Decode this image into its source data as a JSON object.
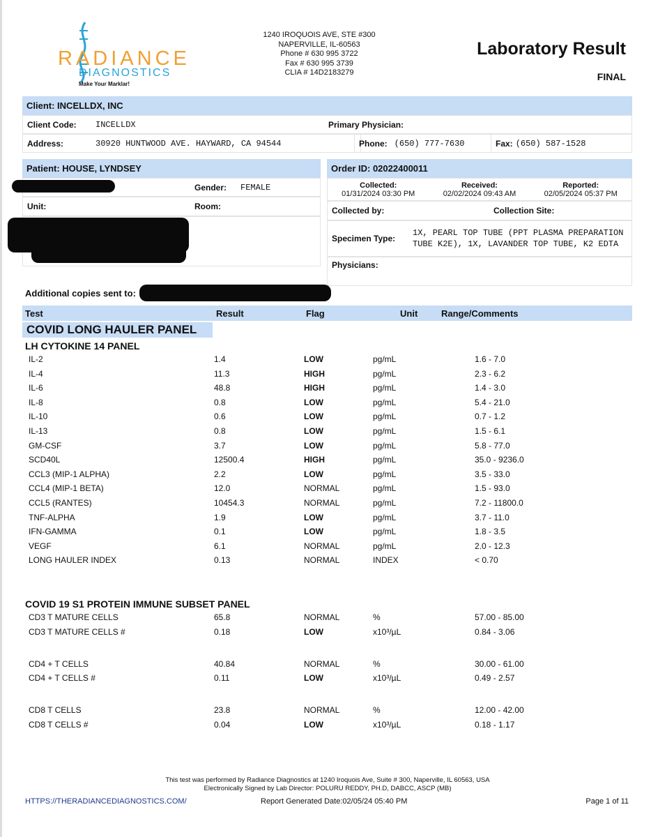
{
  "header": {
    "logo_name": "RADIANCE",
    "logo_sub": "DIAGNOSTICS",
    "logo_tag": "Make Your Marklar!",
    "address": [
      "1240 IROQUOIS AVE, STE #300",
      "NAPERVILLE, IL-60563",
      "Phone # 630 995 3722",
      "Fax # 630 995 3739",
      "CLIA # 14D2183279"
    ],
    "title": "Laboratory Result",
    "status": "FINAL"
  },
  "client": {
    "label": "Client:  INCELLDX, INC",
    "code_label": "Client Code:",
    "code": "INCELLDX",
    "physician_label": "Primary Physician:",
    "address_label": "Address:",
    "address": "30920 HUNTWOOD AVE. HAYWARD, CA 94544",
    "phone_label": "Phone:",
    "phone": "(650) 777-7630",
    "fax_label": "Fax:",
    "fax": "(650) 587-1528"
  },
  "patient": {
    "label": "Patient:  HOUSE, LYNDSEY",
    "gender_label": "Gender:",
    "gender": "FEMALE",
    "unit_label": "Unit:",
    "room_label": "Room:"
  },
  "order": {
    "label": "Order ID: 02022400011",
    "collected_label": "Collected:",
    "collected": "01/31/2024 03:30 PM",
    "received_label": "Received:",
    "received": "02/02/2024 09:43 AM",
    "reported_label": "Reported:",
    "reported": "02/05/2024 05:37 PM",
    "collected_by_label": "Collected by:",
    "site_label": "Collection Site:",
    "specimen_label": "Specimen Type:",
    "specimen": "1X, PEARL TOP TUBE (PPT PLASMA PREPARATION TUBE K2E), 1X, LAVANDER TOP TUBE, K2 EDTA",
    "physicians_label": "Physicians:"
  },
  "copies_label": "Additional copies sent to:",
  "columns": [
    "Test",
    "Result",
    "Flag",
    "Unit",
    "Range/Comments"
  ],
  "panel_title": "COVID LONG HAULER PANEL",
  "sections": [
    {
      "title": "LH CYTOKINE 14 PANEL",
      "rows": [
        [
          "IL-2",
          "1.4",
          "LOW",
          "pg/mL",
          "1.6 - 7.0"
        ],
        [
          "IL-4",
          "11.3",
          "HIGH",
          "pg/mL",
          "2.3 - 6.2"
        ],
        [
          "IL-6",
          "48.8",
          "HIGH",
          "pg/mL",
          "1.4 - 3.0"
        ],
        [
          "IL-8",
          "0.8",
          "LOW",
          "pg/mL",
          "5.4 - 21.0"
        ],
        [
          "IL-10",
          "0.6",
          "LOW",
          "pg/mL",
          "0.7 - 1.2"
        ],
        [
          "IL-13",
          "0.8",
          "LOW",
          "pg/mL",
          "1.5 - 6.1"
        ],
        [
          "GM-CSF",
          "3.7",
          "LOW",
          "pg/mL",
          "5.8 - 77.0"
        ],
        [
          "SCD40L",
          "12500.4",
          "HIGH",
          "pg/mL",
          "35.0 - 9236.0"
        ],
        [
          "CCL3 (MIP-1 ALPHA)",
          "2.2",
          "LOW",
          "pg/mL",
          "3.5 - 33.0"
        ],
        [
          "CCL4 (MIP-1 BETA)",
          "12.0",
          "NORMAL",
          "pg/mL",
          "1.5 - 93.0"
        ],
        [
          "CCL5 (RANTES)",
          "10454.3",
          "NORMAL",
          "pg/mL",
          "7.2 - 11800.0"
        ],
        [
          "TNF-ALPHA",
          "1.9",
          "LOW",
          "pg/mL",
          "3.7 - 11.0"
        ],
        [
          "IFN-GAMMA",
          "0.1",
          "LOW",
          "pg/mL",
          "1.8 - 3.5"
        ],
        [
          "VEGF",
          "6.1",
          "NORMAL",
          "pg/mL",
          "2.0 - 12.3"
        ],
        [
          "LONG HAULER INDEX",
          "0.13",
          "NORMAL",
          "INDEX",
          "< 0.70"
        ]
      ]
    },
    {
      "title": "COVID 19 S1 PROTEIN IMMUNE SUBSET PANEL",
      "rows": [
        [
          "CD3 T MATURE CELLS",
          "65.8",
          "NORMAL",
          "%",
          "57.00 - 85.00"
        ],
        [
          "CD3 T MATURE CELLS #",
          "0.18",
          "LOW",
          "x10³/µL",
          "0.84 - 3.06"
        ],
        null,
        [
          "CD4 + T CELLS",
          "40.84",
          "NORMAL",
          "%",
          "30.00 - 61.00"
        ],
        [
          "CD4 + T CELLS #",
          "0.11",
          "LOW",
          "x10³/µL",
          "0.49 - 2.57"
        ],
        null,
        [
          "CD8 T CELLS",
          "23.8",
          "NORMAL",
          "%",
          "12.00 - 42.00"
        ],
        [
          "CD8 T CELLS #",
          "0.04",
          "LOW",
          "x10³/µL",
          "0.18 - 1.17"
        ]
      ]
    }
  ],
  "footer": {
    "line1": "This test was performed by Radiance Diagnostics at 1240 Iroquois Ave, Suite # 300, Naperville, IL 60563, USA",
    "line2": "Electronically Signed by Lab Director: POLURU REDDY, PH.D, DABCC, ASCP (MB)",
    "url": "HTTPS://THERADIANCEDIAGNOSTICS.COM/",
    "generated": "Report Generated Date:02/05/24 05:40 PM",
    "page": "Page 1 of 11"
  }
}
